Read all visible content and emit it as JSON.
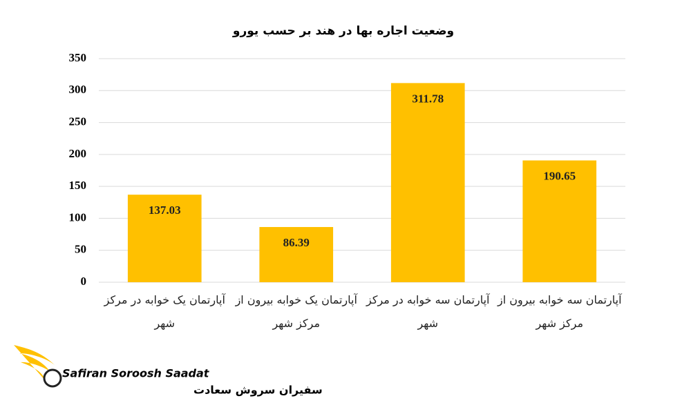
{
  "chart_data": {
    "type": "bar",
    "title": "وضعیت اجاره بها در هند بر حسب یورو",
    "categories": [
      "آپارتمان یک خوابه در مرکز شهر",
      "آپارتمان یک خوابه بیرون از مرکز شهر",
      "آپارتمان سه خوابه در مرکز شهر",
      "آپارتمان سه خوابه بیرون از مرکز شهر"
    ],
    "values": [
      137.03,
      86.39,
      311.78,
      190.65
    ],
    "color": "#ffc000",
    "ylim": [
      0,
      350
    ],
    "yticks": [
      0,
      50,
      100,
      150,
      200,
      250,
      300,
      350
    ],
    "grid": true
  },
  "logo": {
    "name_en": "Safiran Soroosh Saadat",
    "name_fa": "سفیران سروش سعادت"
  }
}
